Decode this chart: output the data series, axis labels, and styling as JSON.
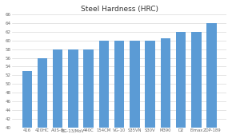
{
  "title": "Steel Hardness (HRC)",
  "categories": [
    "416",
    "420HC",
    "AUS-8",
    "BG-13/MoV",
    "440C",
    "154CM",
    "VG-10",
    "S35VN",
    "S30V",
    "M390",
    "D2",
    "Elmax",
    "ZDP-189"
  ],
  "values": [
    53,
    56,
    58,
    58,
    58,
    60,
    60,
    60,
    60,
    60.5,
    62,
    62,
    64
  ],
  "bar_color": "#5B9BD5",
  "ylim": [
    40,
    66
  ],
  "yticks": [
    40,
    42,
    44,
    46,
    48,
    50,
    52,
    54,
    56,
    58,
    60,
    62,
    64,
    66
  ],
  "grid_color": "#D9D9D9",
  "background_color": "#FFFFFF",
  "plot_bg": "#FFFFFF",
  "title_fontsize": 6.5,
  "tick_fontsize": 4.0,
  "xtick_fontsize": 3.8
}
